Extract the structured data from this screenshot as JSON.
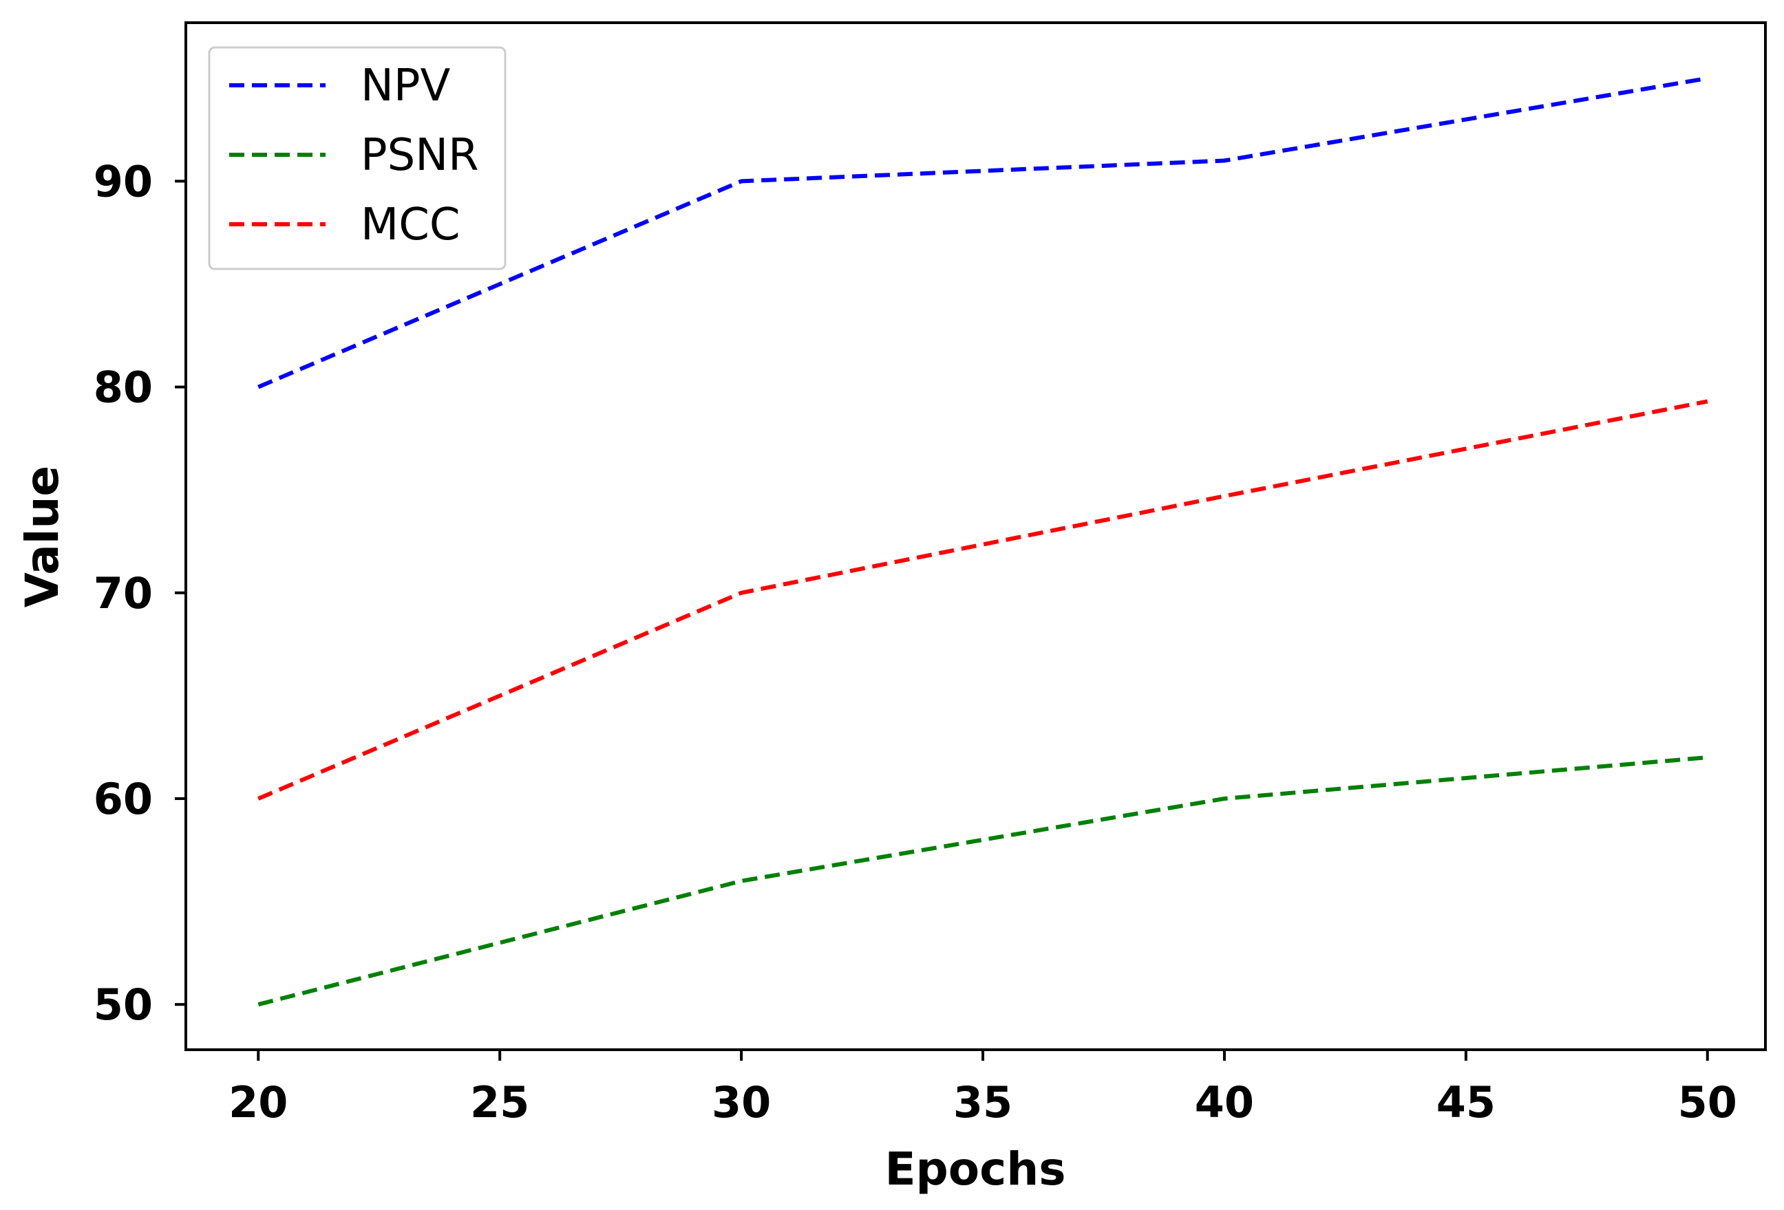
{
  "chart_data": {
    "type": "line",
    "title": "",
    "xlabel": "Epochs",
    "ylabel": "Value",
    "x": [
      20,
      30,
      40,
      50
    ],
    "xlim": [
      18.5,
      51.2
    ],
    "ylim": [
      47.8,
      97.7
    ],
    "xticks": [
      20,
      25,
      30,
      35,
      40,
      45,
      50
    ],
    "yticks": [
      50,
      60,
      70,
      80,
      90
    ],
    "xtick_labels": [
      "20",
      "25",
      "30",
      "35",
      "40",
      "45",
      "50"
    ],
    "ytick_labels": [
      "50",
      "60",
      "70",
      "80",
      "90"
    ],
    "grid": false,
    "legend_position": "top-left",
    "series": [
      {
        "name": "NPV",
        "color": "#0000ff",
        "style": "dashed",
        "values": [
          80,
          90,
          91,
          95
        ]
      },
      {
        "name": "PSNR",
        "color": "#008000",
        "style": "dashed",
        "values": [
          50,
          56,
          60,
          62
        ]
      },
      {
        "name": "MCC",
        "color": "#ff0000",
        "style": "dashed",
        "values": [
          60,
          70,
          74.7,
          79.3
        ]
      }
    ]
  }
}
